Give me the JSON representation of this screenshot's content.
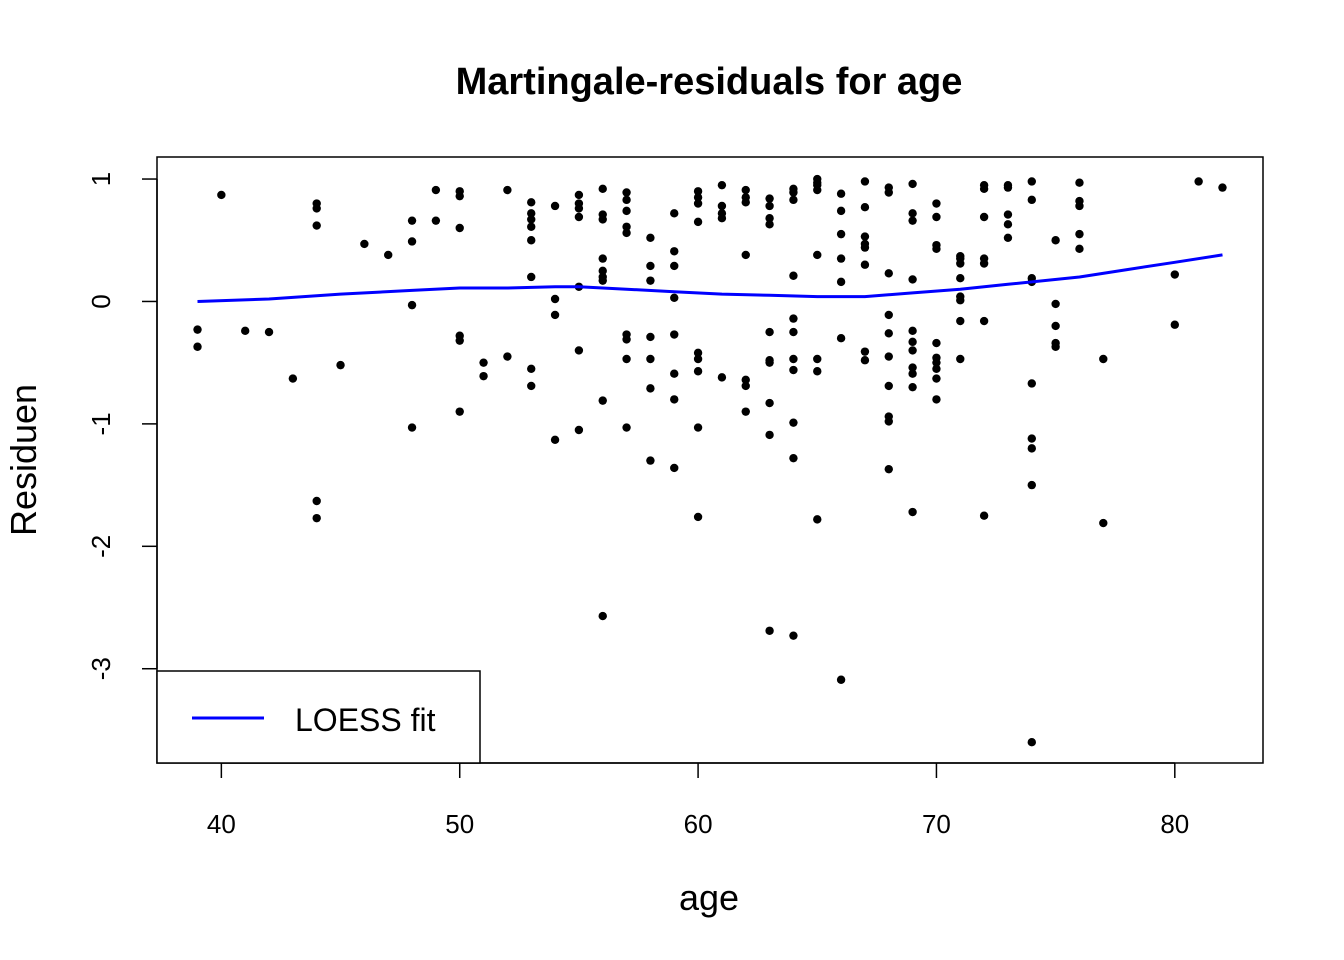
{
  "chart_data": {
    "type": "scatter",
    "title": "Martingale-residuals for age",
    "xlabel": "age",
    "ylabel": "Residuen",
    "xlim": [
      37.3,
      83.7
    ],
    "ylim": [
      -3.77,
      1.18
    ],
    "xticks": [
      40,
      50,
      60,
      70,
      80
    ],
    "yticks": [
      -3,
      -2,
      -1,
      0,
      1
    ],
    "xtick_labels": [
      "40",
      "50",
      "60",
      "70",
      "80"
    ],
    "ytick_labels": [
      "-3",
      "-2",
      "-1",
      "0",
      "1"
    ],
    "grid": false,
    "legend": {
      "position": "bottom-left",
      "entries": [
        {
          "label": "LOESS fit",
          "color": "#0000ff"
        }
      ]
    },
    "colors": {
      "points": "#000000",
      "loess": "#0000ff"
    },
    "series": [
      {
        "kind": "points",
        "points": [
          [
            39,
            -0.23
          ],
          [
            39,
            -0.37
          ],
          [
            40,
            0.87
          ],
          [
            41,
            -0.24
          ],
          [
            42,
            -0.25
          ],
          [
            43,
            -0.63
          ],
          [
            44,
            0.8
          ],
          [
            44,
            0.76
          ],
          [
            44,
            0.62
          ],
          [
            44,
            -1.63
          ],
          [
            44,
            -1.77
          ],
          [
            45,
            -0.52
          ],
          [
            46,
            0.47
          ],
          [
            47,
            0.38
          ],
          [
            48,
            0.66
          ],
          [
            48,
            0.49
          ],
          [
            48,
            -0.03
          ],
          [
            48,
            -1.03
          ],
          [
            49,
            0.91
          ],
          [
            49,
            0.66
          ],
          [
            50,
            0.9
          ],
          [
            50,
            0.86
          ],
          [
            50,
            0.6
          ],
          [
            50,
            -0.28
          ],
          [
            50,
            -0.32
          ],
          [
            50,
            -0.9
          ],
          [
            51,
            -0.5
          ],
          [
            51,
            -0.61
          ],
          [
            52,
            0.91
          ],
          [
            52,
            -0.45
          ],
          [
            53,
            0.81
          ],
          [
            53,
            0.72
          ],
          [
            53,
            0.67
          ],
          [
            53,
            0.61
          ],
          [
            53,
            0.5
          ],
          [
            53,
            0.2
          ],
          [
            53,
            -0.55
          ],
          [
            53,
            -0.69
          ],
          [
            54,
            0.78
          ],
          [
            54,
            0.02
          ],
          [
            54,
            -0.11
          ],
          [
            54,
            -1.13
          ],
          [
            55,
            0.87
          ],
          [
            55,
            0.8
          ],
          [
            55,
            0.76
          ],
          [
            55,
            0.69
          ],
          [
            55,
            0.12
          ],
          [
            55,
            -0.4
          ],
          [
            55,
            -1.05
          ],
          [
            56,
            0.92
          ],
          [
            56,
            0.71
          ],
          [
            56,
            0.67
          ],
          [
            56,
            0.35
          ],
          [
            56,
            0.25
          ],
          [
            56,
            0.2
          ],
          [
            56,
            0.17
          ],
          [
            56,
            -0.81
          ],
          [
            56,
            -2.57
          ],
          [
            57,
            0.89
          ],
          [
            57,
            0.83
          ],
          [
            57,
            0.74
          ],
          [
            57,
            0.61
          ],
          [
            57,
            0.56
          ],
          [
            57,
            -0.27
          ],
          [
            57,
            -0.31
          ],
          [
            57,
            -0.47
          ],
          [
            57,
            -1.03
          ],
          [
            58,
            0.52
          ],
          [
            58,
            0.29
          ],
          [
            58,
            0.17
          ],
          [
            58,
            -0.29
          ],
          [
            58,
            -0.47
          ],
          [
            58,
            -0.71
          ],
          [
            58,
            -1.3
          ],
          [
            59,
            0.72
          ],
          [
            59,
            0.41
          ],
          [
            59,
            0.29
          ],
          [
            59,
            0.03
          ],
          [
            59,
            -0.27
          ],
          [
            59,
            -0.59
          ],
          [
            59,
            -0.8
          ],
          [
            59,
            -1.36
          ],
          [
            60,
            0.9
          ],
          [
            60,
            0.85
          ],
          [
            60,
            0.8
          ],
          [
            60,
            0.65
          ],
          [
            60,
            -0.42
          ],
          [
            60,
            -0.47
          ],
          [
            60,
            -0.57
          ],
          [
            60,
            -1.03
          ],
          [
            60,
            -1.76
          ],
          [
            61,
            0.95
          ],
          [
            61,
            0.78
          ],
          [
            61,
            0.72
          ],
          [
            61,
            0.68
          ],
          [
            61,
            -0.62
          ],
          [
            62,
            0.91
          ],
          [
            62,
            0.85
          ],
          [
            62,
            0.81
          ],
          [
            62,
            0.38
          ],
          [
            62,
            -0.64
          ],
          [
            62,
            -0.69
          ],
          [
            62,
            -0.9
          ],
          [
            63,
            0.84
          ],
          [
            63,
            0.78
          ],
          [
            63,
            0.68
          ],
          [
            63,
            0.63
          ],
          [
            63,
            -0.25
          ],
          [
            63,
            -0.48
          ],
          [
            63,
            -0.5
          ],
          [
            63,
            -0.83
          ],
          [
            63,
            -1.09
          ],
          [
            63,
            -2.69
          ],
          [
            64,
            0.92
          ],
          [
            64,
            0.89
          ],
          [
            64,
            0.83
          ],
          [
            64,
            0.21
          ],
          [
            64,
            -0.14
          ],
          [
            64,
            -0.25
          ],
          [
            64,
            -0.47
          ],
          [
            64,
            -0.56
          ],
          [
            64,
            -0.99
          ],
          [
            64,
            -1.28
          ],
          [
            64,
            -2.73
          ],
          [
            65,
            1.0
          ],
          [
            65,
            0.97
          ],
          [
            65,
            0.95
          ],
          [
            65,
            0.91
          ],
          [
            65,
            0.38
          ],
          [
            65,
            -0.47
          ],
          [
            65,
            -0.57
          ],
          [
            65,
            -1.78
          ],
          [
            66,
            0.88
          ],
          [
            66,
            0.74
          ],
          [
            66,
            0.55
          ],
          [
            66,
            0.35
          ],
          [
            66,
            0.16
          ],
          [
            66,
            -0.3
          ],
          [
            66,
            -3.09
          ],
          [
            67,
            0.98
          ],
          [
            67,
            0.77
          ],
          [
            67,
            0.53
          ],
          [
            67,
            0.47
          ],
          [
            67,
            0.44
          ],
          [
            67,
            0.3
          ],
          [
            67,
            -0.41
          ],
          [
            67,
            -0.48
          ],
          [
            68,
            0.93
          ],
          [
            68,
            0.89
          ],
          [
            68,
            0.23
          ],
          [
            68,
            -0.11
          ],
          [
            68,
            -0.26
          ],
          [
            68,
            -0.45
          ],
          [
            68,
            -0.69
          ],
          [
            68,
            -0.94
          ],
          [
            68,
            -0.98
          ],
          [
            68,
            -1.37
          ],
          [
            69,
            0.96
          ],
          [
            69,
            0.72
          ],
          [
            69,
            0.66
          ],
          [
            69,
            0.18
          ],
          [
            69,
            -0.24
          ],
          [
            69,
            -0.33
          ],
          [
            69,
            -0.4
          ],
          [
            69,
            -0.54
          ],
          [
            69,
            -0.59
          ],
          [
            69,
            -0.7
          ],
          [
            69,
            -1.72
          ],
          [
            70,
            0.8
          ],
          [
            70,
            0.69
          ],
          [
            70,
            0.46
          ],
          [
            70,
            0.43
          ],
          [
            70,
            -0.34
          ],
          [
            70,
            -0.46
          ],
          [
            70,
            -0.5
          ],
          [
            70,
            -0.55
          ],
          [
            70,
            -0.63
          ],
          [
            70,
            -0.8
          ],
          [
            71,
            0.37
          ],
          [
            71,
            0.35
          ],
          [
            71,
            0.31
          ],
          [
            71,
            0.19
          ],
          [
            71,
            0.04
          ],
          [
            71,
            0.01
          ],
          [
            71,
            -0.16
          ],
          [
            71,
            -0.47
          ],
          [
            72,
            0.95
          ],
          [
            72,
            0.92
          ],
          [
            72,
            0.69
          ],
          [
            72,
            0.35
          ],
          [
            72,
            0.31
          ],
          [
            72,
            -0.16
          ],
          [
            72,
            -1.75
          ],
          [
            73,
            0.95
          ],
          [
            73,
            0.93
          ],
          [
            73,
            0.71
          ],
          [
            73,
            0.63
          ],
          [
            73,
            0.52
          ],
          [
            74,
            0.98
          ],
          [
            74,
            0.83
          ],
          [
            74,
            0.19
          ],
          [
            74,
            0.16
          ],
          [
            74,
            -0.67
          ],
          [
            74,
            -1.12
          ],
          [
            74,
            -1.2
          ],
          [
            74,
            -1.5
          ],
          [
            74,
            -3.6
          ],
          [
            75,
            0.5
          ],
          [
            75,
            -0.02
          ],
          [
            75,
            -0.2
          ],
          [
            75,
            -0.34
          ],
          [
            75,
            -0.37
          ],
          [
            76,
            0.97
          ],
          [
            76,
            0.82
          ],
          [
            76,
            0.78
          ],
          [
            76,
            0.55
          ],
          [
            76,
            0.43
          ],
          [
            77,
            -0.47
          ],
          [
            77,
            -1.81
          ],
          [
            80,
            0.22
          ],
          [
            80,
            -0.19
          ],
          [
            81,
            0.98
          ],
          [
            82,
            0.93
          ]
        ]
      },
      {
        "name": "LOESS fit",
        "kind": "line",
        "points": [
          [
            39,
            0.0
          ],
          [
            42,
            0.02
          ],
          [
            45,
            0.06
          ],
          [
            48,
            0.09
          ],
          [
            50,
            0.11
          ],
          [
            52,
            0.11
          ],
          [
            54,
            0.12
          ],
          [
            55,
            0.12
          ],
          [
            57,
            0.1
          ],
          [
            59,
            0.08
          ],
          [
            61,
            0.06
          ],
          [
            63,
            0.05
          ],
          [
            65,
            0.04
          ],
          [
            67,
            0.04
          ],
          [
            69,
            0.07
          ],
          [
            71,
            0.1
          ],
          [
            73,
            0.14
          ],
          [
            76,
            0.2
          ],
          [
            78,
            0.26
          ],
          [
            80,
            0.32
          ],
          [
            82,
            0.38
          ]
        ]
      }
    ]
  }
}
